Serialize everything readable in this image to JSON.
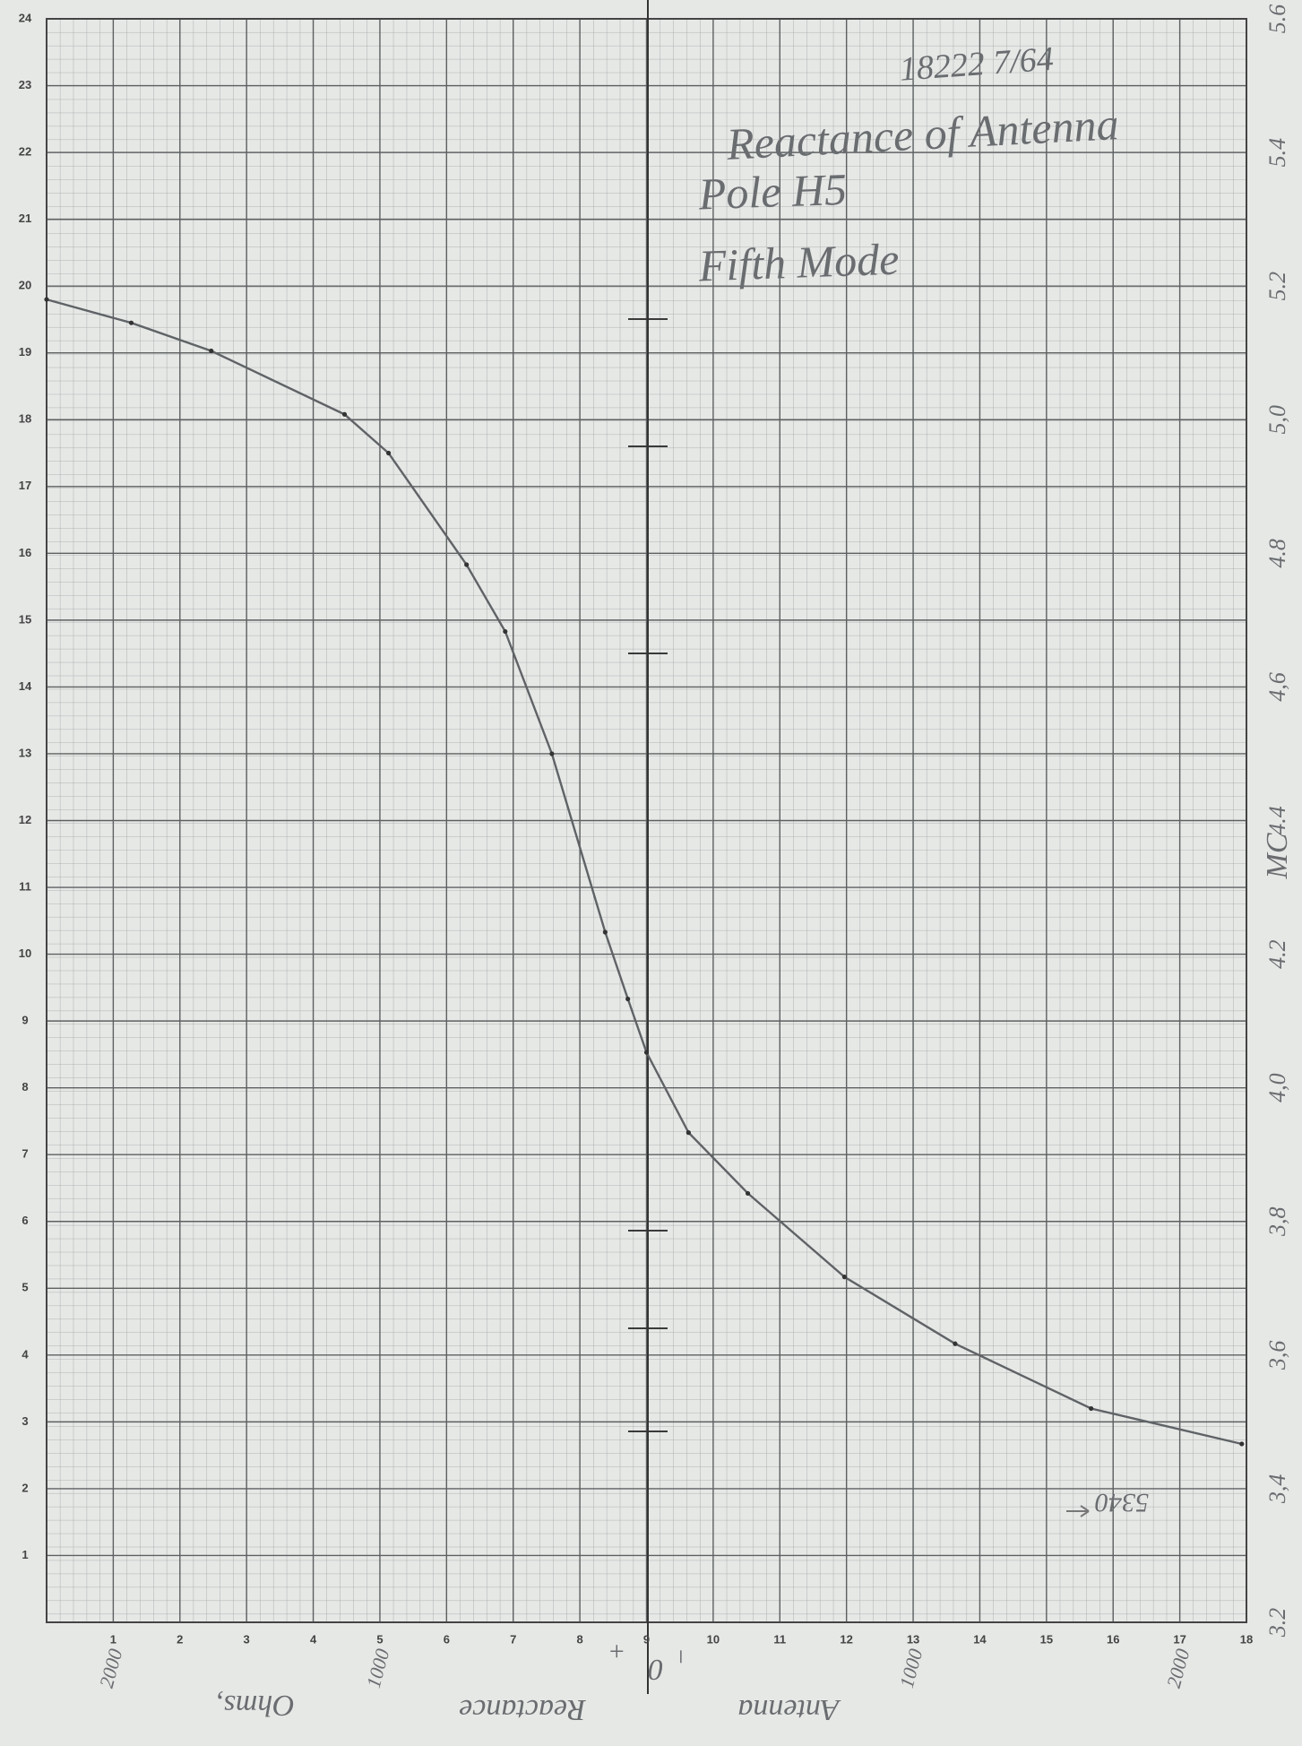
{
  "chart_data": {
    "type": "line",
    "x": [
      0,
      1.27,
      2.47,
      4.47,
      5.13,
      6.3,
      6.88,
      7.58,
      8.38,
      8.72,
      9.0,
      9.63,
      10.52,
      11.97,
      13.63,
      15.67,
      17.93
    ],
    "series": [
      {
        "color": "#5f6366",
        "values": [
          19.8,
          19.45,
          19.03,
          18.08,
          17.5,
          15.83,
          14.83,
          13.0,
          10.33,
          9.33,
          8.53,
          7.33,
          6.42,
          5.17,
          4.17,
          3.2,
          2.67
        ]
      }
    ],
    "xlim": [
      0,
      18
    ],
    "xticks": [
      1,
      2,
      3,
      4,
      5,
      6,
      7,
      8,
      9,
      10,
      11,
      12,
      13,
      14,
      15,
      16,
      17,
      18
    ],
    "ylim": [
      0,
      24
    ],
    "yticks": [
      1,
      2,
      3,
      4,
      5,
      6,
      7,
      8,
      9,
      10,
      11,
      12,
      13,
      14,
      15,
      16,
      17,
      18,
      19,
      20,
      21,
      22,
      23,
      24
    ],
    "y2lim": [
      3.2,
      5.6
    ],
    "y2ticks": [
      3.2,
      {
        "value": 3.4,
        "label": "3,4"
      },
      {
        "value": 3.6,
        "label": "3,6"
      },
      {
        "value": 3.8,
        "label": "3,8"
      },
      {
        "value": 4.0,
        "label": "4,0"
      },
      4.2,
      4.4,
      {
        "value": 4.6,
        "label": "4,6"
      },
      4.8,
      {
        "value": 5.0,
        "label": "5,0"
      },
      5.2,
      5.4,
      5.6
    ],
    "grid": true,
    "annotations": [
      "18222 7/64",
      "Reactance of Antenna",
      "Pole H5",
      "Fifth Mode",
      "MC",
      "5340",
      "2000",
      "1000",
      "+",
      "0",
      "−",
      "1000",
      "2000",
      "Ohms,",
      "Reactance",
      "Antenna"
    ]
  }
}
